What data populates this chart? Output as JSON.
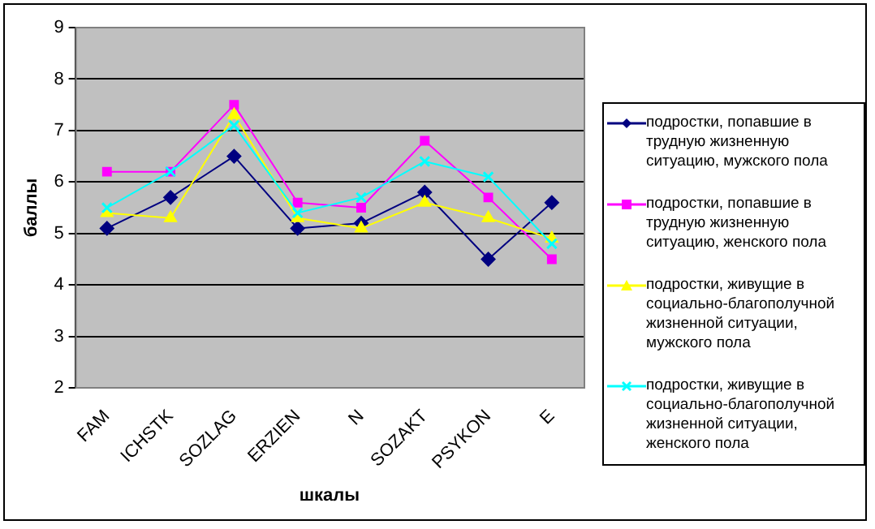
{
  "chart_data": {
    "type": "line",
    "xlabel": "шкалы",
    "ylabel": "баллы",
    "categories": [
      "FAM",
      "ICHSTK",
      "SOZLAG",
      "ERZIEN",
      "N",
      "SOZAKT",
      "PSYKON",
      "E"
    ],
    "ylim": [
      2,
      9
    ],
    "yticks": [
      2,
      3,
      4,
      5,
      6,
      7,
      8,
      9
    ],
    "grid": "y",
    "legend": "right",
    "series": [
      {
        "name": "подростки, попавшие в трудную жизненную ситуацию, мужского пола",
        "color": "#000080",
        "marker": "diamond",
        "values": [
          5.1,
          5.7,
          6.5,
          5.1,
          5.2,
          5.8,
          4.5,
          5.6
        ]
      },
      {
        "name": "подростки, попавшие в трудную жизненную ситуацию, женского пола",
        "color": "#ff00ff",
        "marker": "square",
        "values": [
          6.2,
          6.2,
          7.5,
          5.6,
          5.5,
          6.8,
          5.7,
          4.5
        ]
      },
      {
        "name": "подростки, живущие в социально-благополучной жизненной ситуации, мужского пола",
        "color": "#ffff00",
        "marker": "triangle",
        "values": [
          5.4,
          5.3,
          7.3,
          5.3,
          5.1,
          5.6,
          5.3,
          4.9
        ]
      },
      {
        "name": "подростки, живущие в социально-благополучной жизненной ситуации, женского пола",
        "color": "#00ffff",
        "marker": "cross",
        "values": [
          5.5,
          6.2,
          7.1,
          5.4,
          5.7,
          6.4,
          6.1,
          4.8
        ]
      }
    ]
  }
}
